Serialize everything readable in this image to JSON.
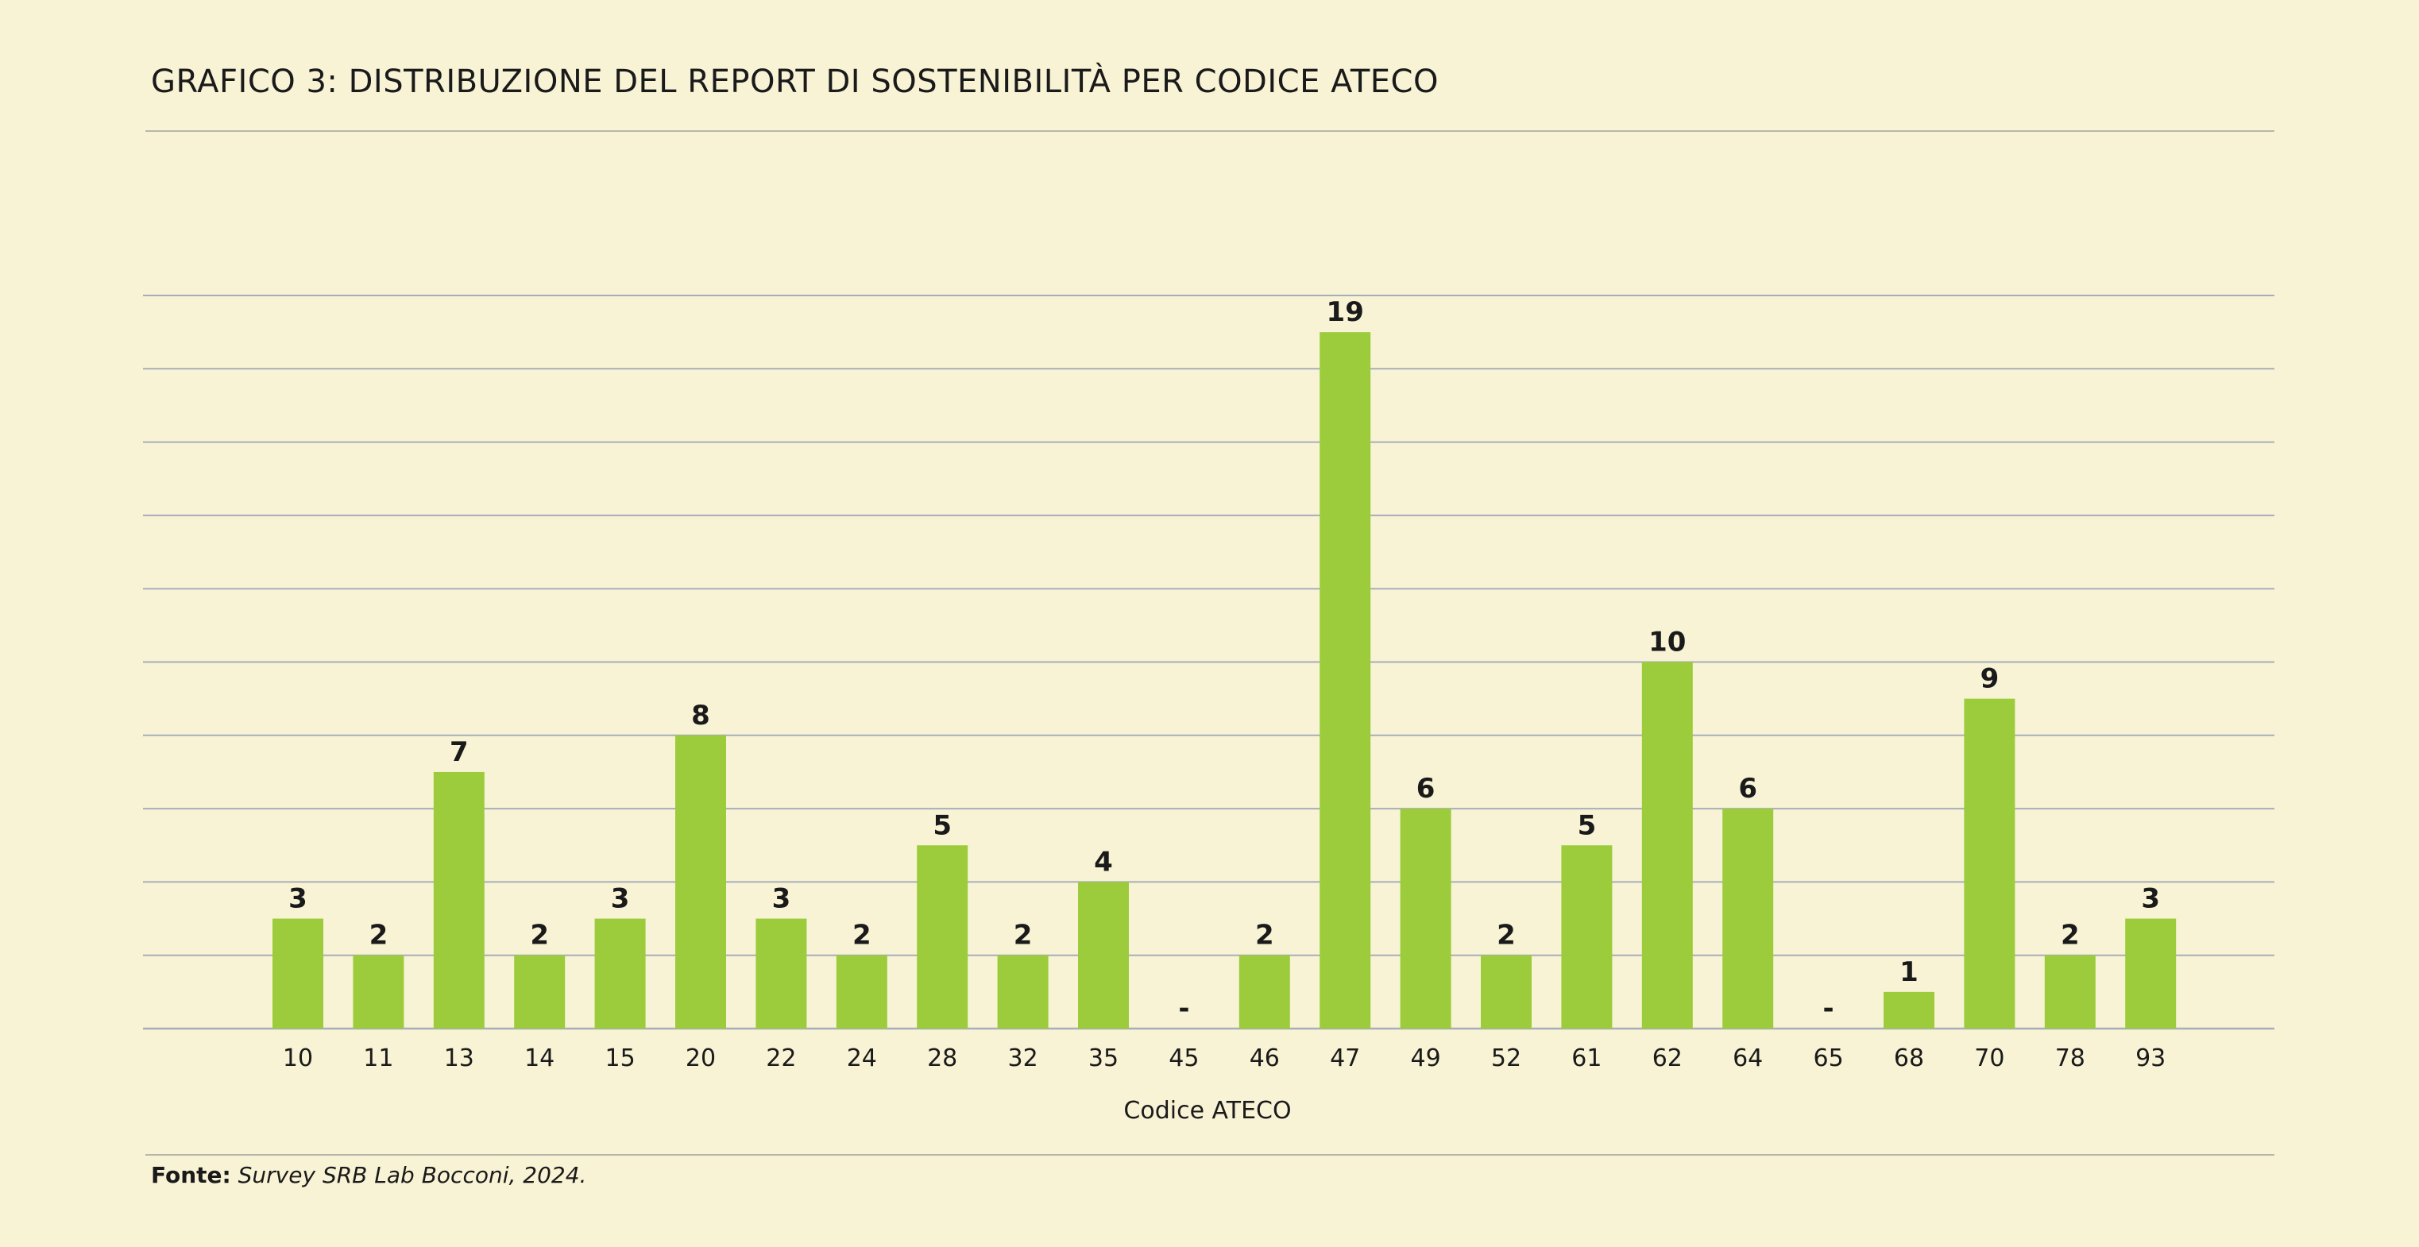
{
  "title": "GRAFICO 3: DISTRIBUZIONE DEL REPORT DI SOSTENIBILITÀ PER CODICE ATECO",
  "source": {
    "label": "Fonte:",
    "text": "Survey SRB Lab Bocconi, 2024."
  },
  "colors": {
    "bar": "#9ccc3c",
    "grid": "#a8aeb8",
    "background": "#f8f3d5",
    "text": "#1a1a1a"
  },
  "chart_data": {
    "type": "bar",
    "xlabel": "Codice ATECO",
    "ylabel": "",
    "ylim": [
      0,
      20
    ],
    "grid": true,
    "categories": [
      "10",
      "11",
      "13",
      "14",
      "15",
      "20",
      "22",
      "24",
      "28",
      "32",
      "35",
      "45",
      "46",
      "47",
      "49",
      "52",
      "61",
      "62",
      "64",
      "65",
      "68",
      "70",
      "78",
      "93"
    ],
    "values": [
      3,
      2,
      7,
      2,
      3,
      8,
      3,
      2,
      5,
      2,
      4,
      0,
      2,
      19,
      6,
      2,
      5,
      10,
      6,
      0,
      1,
      9,
      2,
      3
    ],
    "data_labels": [
      "3",
      "2",
      "7",
      "2",
      "3",
      "8",
      "3",
      "2",
      "5",
      "2",
      "4",
      "-",
      "2",
      "19",
      "6",
      "2",
      "5",
      "10",
      "6",
      "-",
      "1",
      "9",
      "2",
      "3"
    ]
  }
}
